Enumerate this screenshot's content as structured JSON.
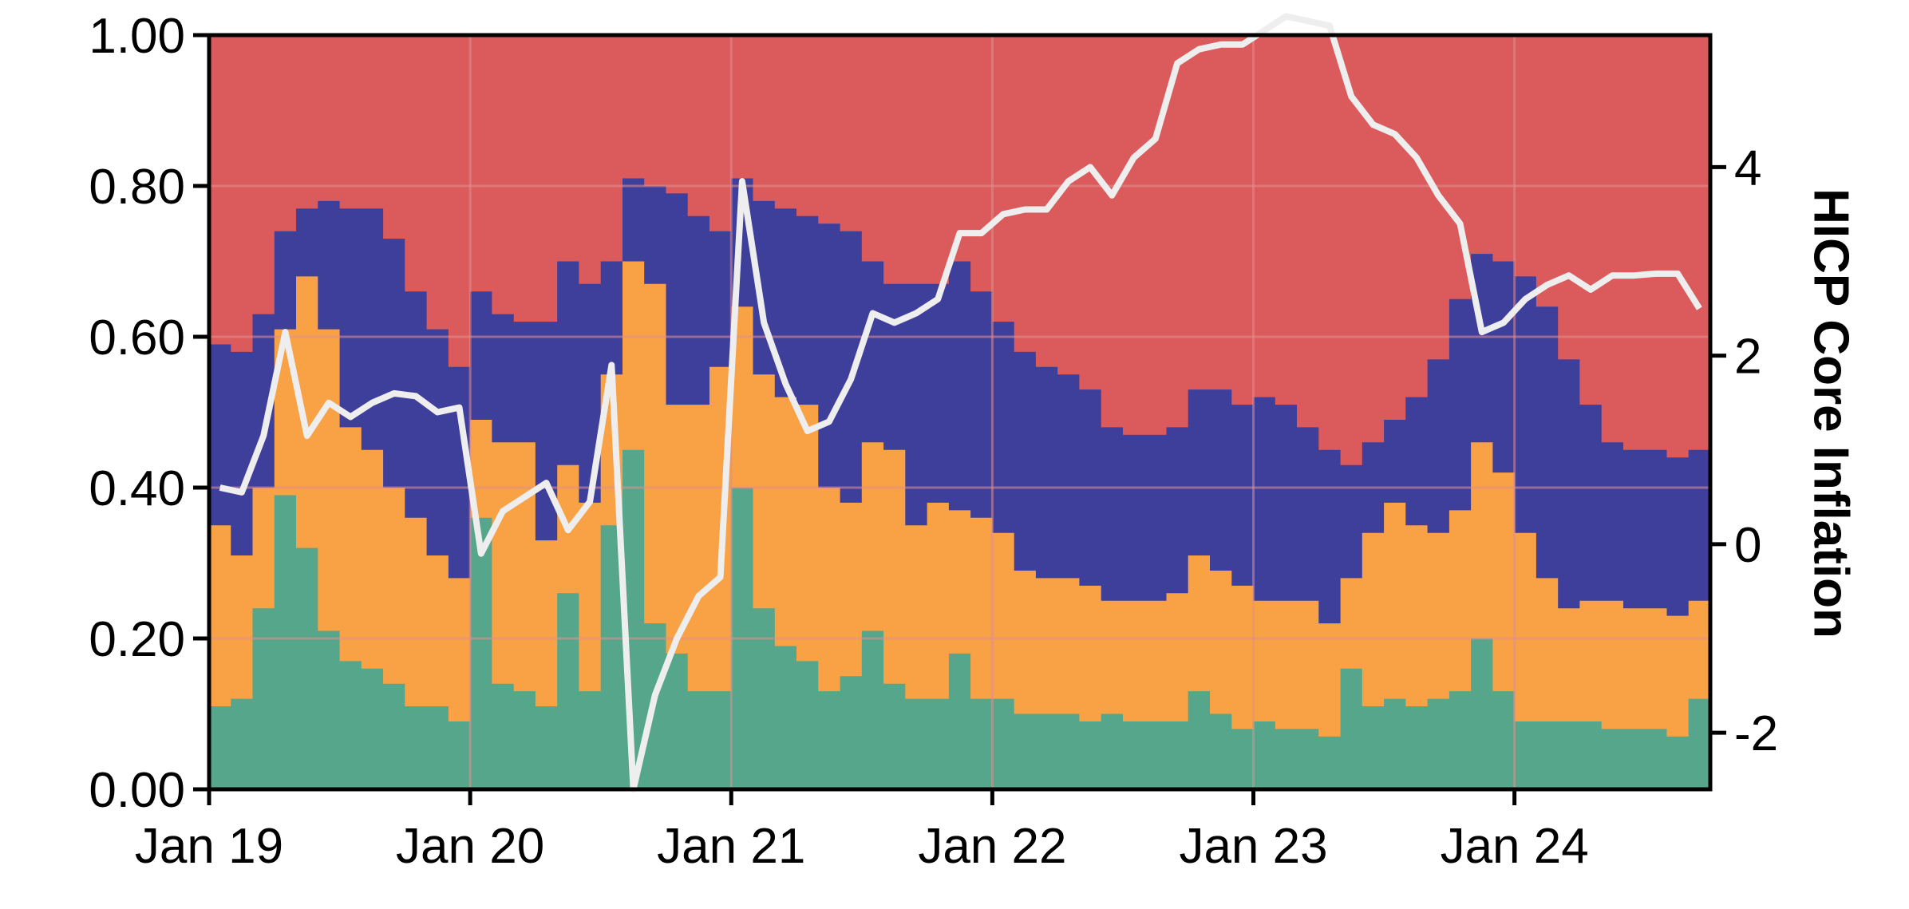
{
  "chart_data": {
    "type": "area",
    "title": "",
    "xlabel": "",
    "ylabel": "",
    "y2label": "HICP Core Inflation",
    "xlim": [
      0,
      69
    ],
    "ylim": [
      0,
      1
    ],
    "y2lim": [
      -2.6,
      5.4
    ],
    "x_ticks": [
      {
        "pos": 0,
        "label": "Jan 19"
      },
      {
        "pos": 12,
        "label": "Jan 20"
      },
      {
        "pos": 24,
        "label": "Jan 21"
      },
      {
        "pos": 36,
        "label": "Jan 22"
      },
      {
        "pos": 48,
        "label": "Jan 23"
      },
      {
        "pos": 60,
        "label": "Jan 24"
      }
    ],
    "y_ticks": [
      "0.00",
      "0.20",
      "0.40",
      "0.60",
      "0.80",
      "1.00"
    ],
    "y2_ticks": [
      "-2",
      "0",
      "2",
      "4"
    ],
    "grid": true,
    "colors": {
      "green": "#55a68a",
      "orange": "#f8a145",
      "blue": "#3e3f9b",
      "red": "#db5a5c",
      "line": "#eeeeee",
      "grid": "#e09090"
    },
    "band_tops": {
      "green": [
        0.11,
        0.12,
        0.24,
        0.39,
        0.32,
        0.21,
        0.17,
        0.16,
        0.14,
        0.11,
        0.11,
        0.09,
        0.36,
        0.14,
        0.13,
        0.11,
        0.26,
        0.13,
        0.35,
        0.45,
        0.22,
        0.18,
        0.13,
        0.13,
        0.4,
        0.24,
        0.19,
        0.17,
        0.13,
        0.15,
        0.21,
        0.14,
        0.12,
        0.12,
        0.18,
        0.12,
        0.12,
        0.1,
        0.1,
        0.1,
        0.09,
        0.1,
        0.09,
        0.09,
        0.09,
        0.13,
        0.1,
        0.08,
        0.09,
        0.08,
        0.08,
        0.07,
        0.16,
        0.11,
        0.12,
        0.11,
        0.12,
        0.13,
        0.2,
        0.13,
        0.09,
        0.09,
        0.09,
        0.09,
        0.08,
        0.08,
        0.08,
        0.07,
        0.12
      ],
      "orange": [
        0.35,
        0.31,
        0.4,
        0.61,
        0.68,
        0.61,
        0.48,
        0.45,
        0.4,
        0.36,
        0.31,
        0.28,
        0.49,
        0.46,
        0.46,
        0.33,
        0.43,
        0.38,
        0.55,
        0.7,
        0.67,
        0.51,
        0.51,
        0.56,
        0.64,
        0.55,
        0.52,
        0.51,
        0.4,
        0.38,
        0.46,
        0.45,
        0.35,
        0.38,
        0.37,
        0.36,
        0.34,
        0.29,
        0.28,
        0.28,
        0.27,
        0.25,
        0.25,
        0.25,
        0.26,
        0.31,
        0.29,
        0.27,
        0.25,
        0.25,
        0.25,
        0.22,
        0.28,
        0.34,
        0.38,
        0.35,
        0.34,
        0.37,
        0.46,
        0.42,
        0.34,
        0.28,
        0.24,
        0.25,
        0.25,
        0.24,
        0.24,
        0.23,
        0.25
      ],
      "blue": [
        0.59,
        0.58,
        0.63,
        0.74,
        0.77,
        0.78,
        0.77,
        0.77,
        0.73,
        0.66,
        0.61,
        0.56,
        0.66,
        0.63,
        0.62,
        0.62,
        0.7,
        0.67,
        0.7,
        0.81,
        0.8,
        0.79,
        0.76,
        0.74,
        0.81,
        0.78,
        0.77,
        0.76,
        0.75,
        0.74,
        0.7,
        0.67,
        0.67,
        0.67,
        0.7,
        0.66,
        0.62,
        0.58,
        0.56,
        0.55,
        0.53,
        0.48,
        0.47,
        0.47,
        0.48,
        0.53,
        0.53,
        0.51,
        0.52,
        0.51,
        0.48,
        0.45,
        0.43,
        0.46,
        0.49,
        0.52,
        0.57,
        0.65,
        0.71,
        0.7,
        0.68,
        0.64,
        0.57,
        0.51,
        0.46,
        0.45,
        0.45,
        0.44,
        0.45
      ]
    },
    "series": [
      {
        "name": "",
        "axis": "y2",
        "values": [
          0.6,
          0.55,
          1.15,
          2.25,
          1.15,
          1.5,
          1.35,
          1.5,
          1.6,
          1.57,
          1.4,
          1.45,
          -0.1,
          0.35,
          0.5,
          0.65,
          0.15,
          0.45,
          1.9,
          -2.6,
          -1.6,
          -1.0,
          -0.55,
          -0.35,
          3.85,
          2.35,
          1.7,
          1.2,
          1.3,
          1.75,
          2.45,
          2.35,
          2.45,
          2.6,
          3.3,
          3.3,
          3.5,
          3.55,
          3.55,
          3.85,
          4.0,
          3.7,
          4.1,
          4.3,
          5.1,
          5.25,
          5.3,
          5.3,
          5.45,
          5.6,
          5.55,
          5.5,
          4.75,
          4.45,
          4.35,
          4.1,
          3.7,
          3.4,
          2.25,
          2.35,
          2.6,
          2.75,
          2.85,
          2.7,
          2.85,
          2.85,
          2.87,
          2.87,
          2.5
        ]
      }
    ]
  }
}
